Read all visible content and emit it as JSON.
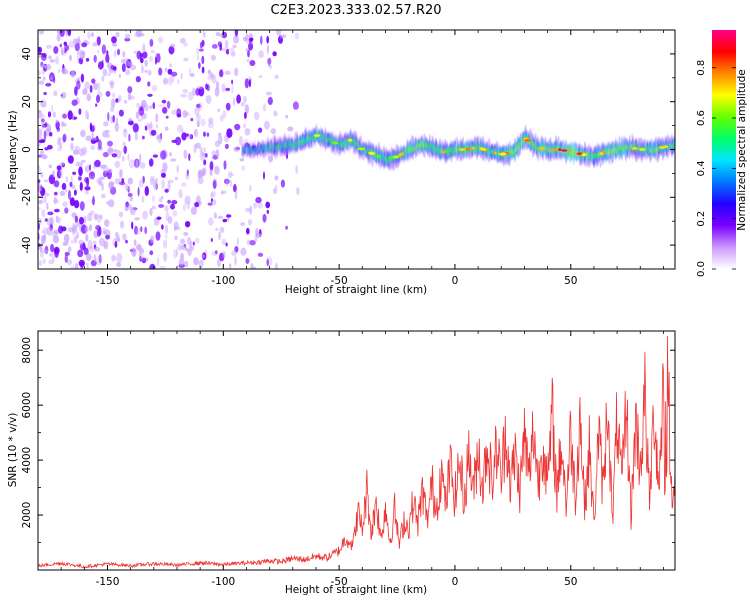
{
  "figure_title": "C2E3.2023.333.02.57.R20",
  "chart_data": [
    {
      "type": "heatmap",
      "xlabel": "Height of straight line (km)",
      "ylabel": "Frequency (Hz)",
      "xlim": [
        -180,
        95
      ],
      "ylim": [
        -50,
        50
      ],
      "xticks": [
        -150,
        -100,
        -50,
        0,
        50
      ],
      "yticks": [
        -40,
        -20,
        0,
        20,
        40
      ],
      "xtick_labels": [
        "-150",
        "-100",
        "-50",
        "0",
        "50"
      ],
      "ytick_labels": [
        "-40",
        "-20",
        "0",
        "20",
        "40"
      ],
      "colorbar": {
        "label": "Normalized spectral amplitude",
        "range": [
          0,
          0.95
        ],
        "ticks": [
          0.0,
          0.2,
          0.4,
          0.6,
          0.8
        ],
        "tick_labels": [
          "0.0",
          "0.2",
          "0.4",
          "0.6",
          "0.8"
        ],
        "colormap": [
          "#ffffff",
          "#cc99ff",
          "#7a00ff",
          "#2200ff",
          "#0077ff",
          "#00e5ff",
          "#00ff66",
          "#66ff00",
          "#ffff00",
          "#ff8800",
          "#ff0000",
          "#ff0088"
        ]
      },
      "noise_region_km": [
        -180,
        -65
      ],
      "signal_start_km": -92,
      "signal_trace": {
        "x": [
          -92,
          -85,
          -78,
          -70,
          -60,
          -50,
          -45,
          -40,
          -35,
          -30,
          -25,
          -20,
          -15,
          -10,
          -5,
          0,
          5,
          10,
          15,
          20,
          25,
          30,
          35,
          40,
          45,
          50,
          55,
          60,
          65,
          70,
          75,
          80,
          85,
          90,
          95
        ],
        "freq": [
          0,
          0,
          1,
          2,
          6,
          2,
          4,
          0,
          -2,
          -4,
          -3,
          0,
          2,
          1,
          -1,
          0,
          0,
          1,
          -1,
          -2,
          -1,
          5,
          1,
          0,
          0,
          -1,
          -2,
          -3,
          -1,
          0,
          1,
          0,
          0,
          1,
          2
        ],
        "peak_amplitude": [
          0.3,
          0.35,
          0.4,
          0.5,
          0.55,
          0.5,
          0.55,
          0.5,
          0.55,
          0.45,
          0.5,
          0.6,
          0.65,
          0.6,
          0.55,
          0.6,
          0.65,
          0.6,
          0.55,
          0.6,
          0.7,
          0.65,
          0.6,
          0.7,
          0.65,
          0.9,
          0.6,
          0.55,
          0.6,
          0.7,
          0.6,
          0.55,
          0.6,
          0.55,
          0.5
        ]
      }
    },
    {
      "type": "line",
      "color": "#ee3333",
      "xlabel": "Height of straight line (km)",
      "ylabel": "SNR (10 * v/v)",
      "xlim": [
        -180,
        95
      ],
      "ylim": [
        0,
        8700
      ],
      "xticks": [
        -150,
        -100,
        -50,
        0,
        50
      ],
      "yticks": [
        2000,
        4000,
        6000,
        8000
      ],
      "xtick_labels": [
        "-150",
        "-100",
        "-50",
        "0",
        "50"
      ],
      "ytick_labels": [
        "2000",
        "4000",
        "6000",
        "8000"
      ],
      "series": [
        {
          "name": "SNR",
          "x": [
            -180,
            -170,
            -160,
            -150,
            -140,
            -130,
            -120,
            -110,
            -100,
            -90,
            -85,
            -80,
            -75,
            -70,
            -65,
            -60,
            -55,
            -50,
            -47,
            -44,
            -42,
            -40,
            -38,
            -36,
            -34,
            -32,
            -30,
            -28,
            -26,
            -24,
            -22,
            -20,
            -18,
            -16,
            -14,
            -12,
            -10,
            -8,
            -6,
            -4,
            -2,
            0,
            2,
            4,
            6,
            8,
            10,
            12,
            14,
            16,
            18,
            20,
            22,
            24,
            26,
            28,
            30,
            32,
            34,
            36,
            38,
            40,
            42,
            44,
            46,
            48,
            50,
            52,
            54,
            56,
            58,
            60,
            62,
            64,
            66,
            68,
            70,
            72,
            74,
            76,
            78,
            80,
            82,
            84,
            86,
            88,
            90,
            91,
            92,
            93,
            95
          ],
          "values": [
            150,
            250,
            120,
            220,
            160,
            230,
            180,
            260,
            200,
            260,
            280,
            340,
            300,
            420,
            380,
            500,
            450,
            700,
            1200,
            900,
            2100,
            1500,
            2900,
            1300,
            2600,
            1100,
            2300,
            1000,
            2200,
            900,
            1800,
            1500,
            2500,
            1700,
            2900,
            1800,
            3100,
            2200,
            3600,
            2400,
            3800,
            2600,
            4000,
            2500,
            4300,
            2800,
            4500,
            3000,
            4700,
            3100,
            4500,
            3300,
            5200,
            3100,
            4200,
            2900,
            4900,
            3300,
            5200,
            3100,
            4800,
            3000,
            5600,
            2800,
            4700,
            2400,
            5000,
            2700,
            5700,
            2300,
            4400,
            1700,
            5000,
            2800,
            6300,
            1700,
            5500,
            3100,
            6000,
            2000,
            5400,
            3800,
            6300,
            2400,
            5900,
            3200,
            6400,
            1200,
            8700,
            3100,
            3300
          ]
        }
      ]
    }
  ]
}
